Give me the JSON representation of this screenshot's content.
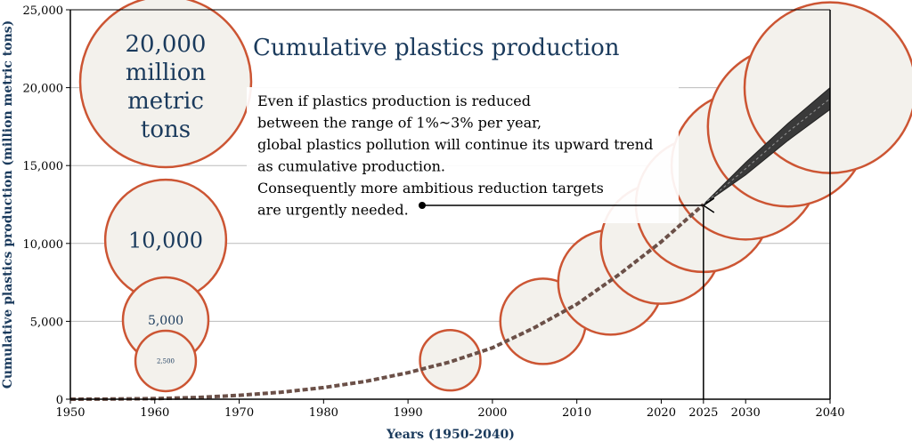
{
  "chart_data": {
    "type": "scatter",
    "title": "Cumulative plastics production",
    "xlabel": "Years (1950-2040)",
    "ylabel": "Cumulative plastics production (million metric tons)",
    "xlim": [
      1950,
      2040
    ],
    "ylim": [
      0,
      25000
    ],
    "x_ticks": [
      "1950",
      "1960",
      "1970",
      "1980",
      "1990",
      "2000",
      "2010",
      "2020",
      "2025",
      "2030",
      "2040"
    ],
    "x_tick_values": [
      1950,
      1960,
      1970,
      1980,
      1990,
      2000,
      2010,
      2020,
      2025,
      2030,
      2040
    ],
    "y_ticks": [
      "0",
      "5,000",
      "10,000",
      "15,000",
      "20,000",
      "25,000"
    ],
    "y_tick_values": [
      0,
      5000,
      10000,
      15000,
      20000,
      25000
    ],
    "grid": "horizontal",
    "curve": {
      "x": [
        1950,
        1955,
        1960,
        1965,
        1970,
        1975,
        1980,
        1985,
        1990,
        1995,
        2000,
        2005,
        2010,
        2015,
        2020,
        2025
      ],
      "y": [
        0,
        10,
        40,
        110,
        250,
        450,
        750,
        1150,
        1700,
        2400,
        3300,
        4600,
        6100,
        8000,
        10100,
        12500
      ]
    },
    "bubbles": [
      {
        "x": 1995,
        "y": 2500
      },
      {
        "x": 2006,
        "y": 5000
      },
      {
        "x": 2014,
        "y": 7500
      },
      {
        "x": 2020,
        "y": 10000
      },
      {
        "x": 2025,
        "y": 12500
      },
      {
        "x": 2030,
        "y": 15000
      },
      {
        "x": 2035,
        "y": 17500
      },
      {
        "x": 2040,
        "y": 20000
      }
    ],
    "projection_band": {
      "x": [
        2025,
        2030,
        2035,
        2040
      ],
      "upper": [
        12500,
        15200,
        17700,
        20000
      ],
      "lower": [
        12500,
        14400,
        16600,
        18600
      ]
    },
    "size_legend": [
      {
        "value": 20000,
        "label": "20,000 million metric tons"
      },
      {
        "value": 10000,
        "label": "10,000"
      },
      {
        "value": 5000,
        "label": "5,000"
      },
      {
        "value": 2500,
        "label": "2,500"
      }
    ],
    "annotation": {
      "lines": [
        "Even if plastics production is reduced",
        "between the range of 1%~3% per year,",
        "global plastics pollution will continue its upward trend",
        "as cumulative production.",
        "Consequently more ambitious reduction targets",
        "are urgently needed."
      ],
      "arrow_to": {
        "x": 2025,
        "y": 12500
      }
    },
    "colors": {
      "bubble_stroke": "#cc5533",
      "bubble_fill": "#f3f1ec",
      "curve": "#6b5048",
      "band": "#3a3a3a",
      "grid": "#bbbbbb",
      "axis_text": "#1a3a5c"
    }
  }
}
